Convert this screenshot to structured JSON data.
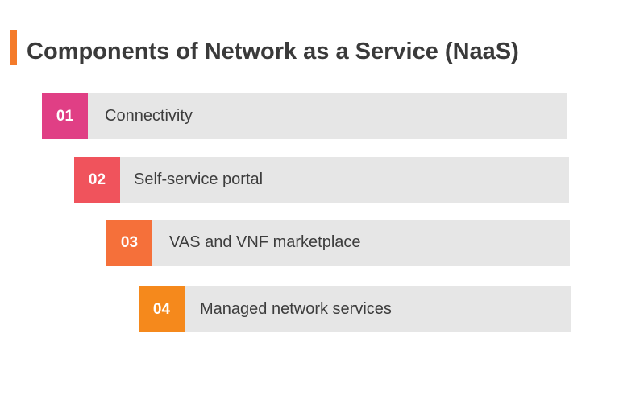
{
  "title": "Components of Network as a Service (NaaS)",
  "accent_color": "#f47b2a",
  "items": [
    {
      "number": "01",
      "label": "Connectivity",
      "color": "#e03f85"
    },
    {
      "number": "02",
      "label": "Self-service portal",
      "color": "#f0535c"
    },
    {
      "number": "03",
      "label": "VAS and VNF marketplace",
      "color": "#f5703a"
    },
    {
      "number": "04",
      "label": "Managed network services",
      "color": "#f5891c"
    }
  ]
}
